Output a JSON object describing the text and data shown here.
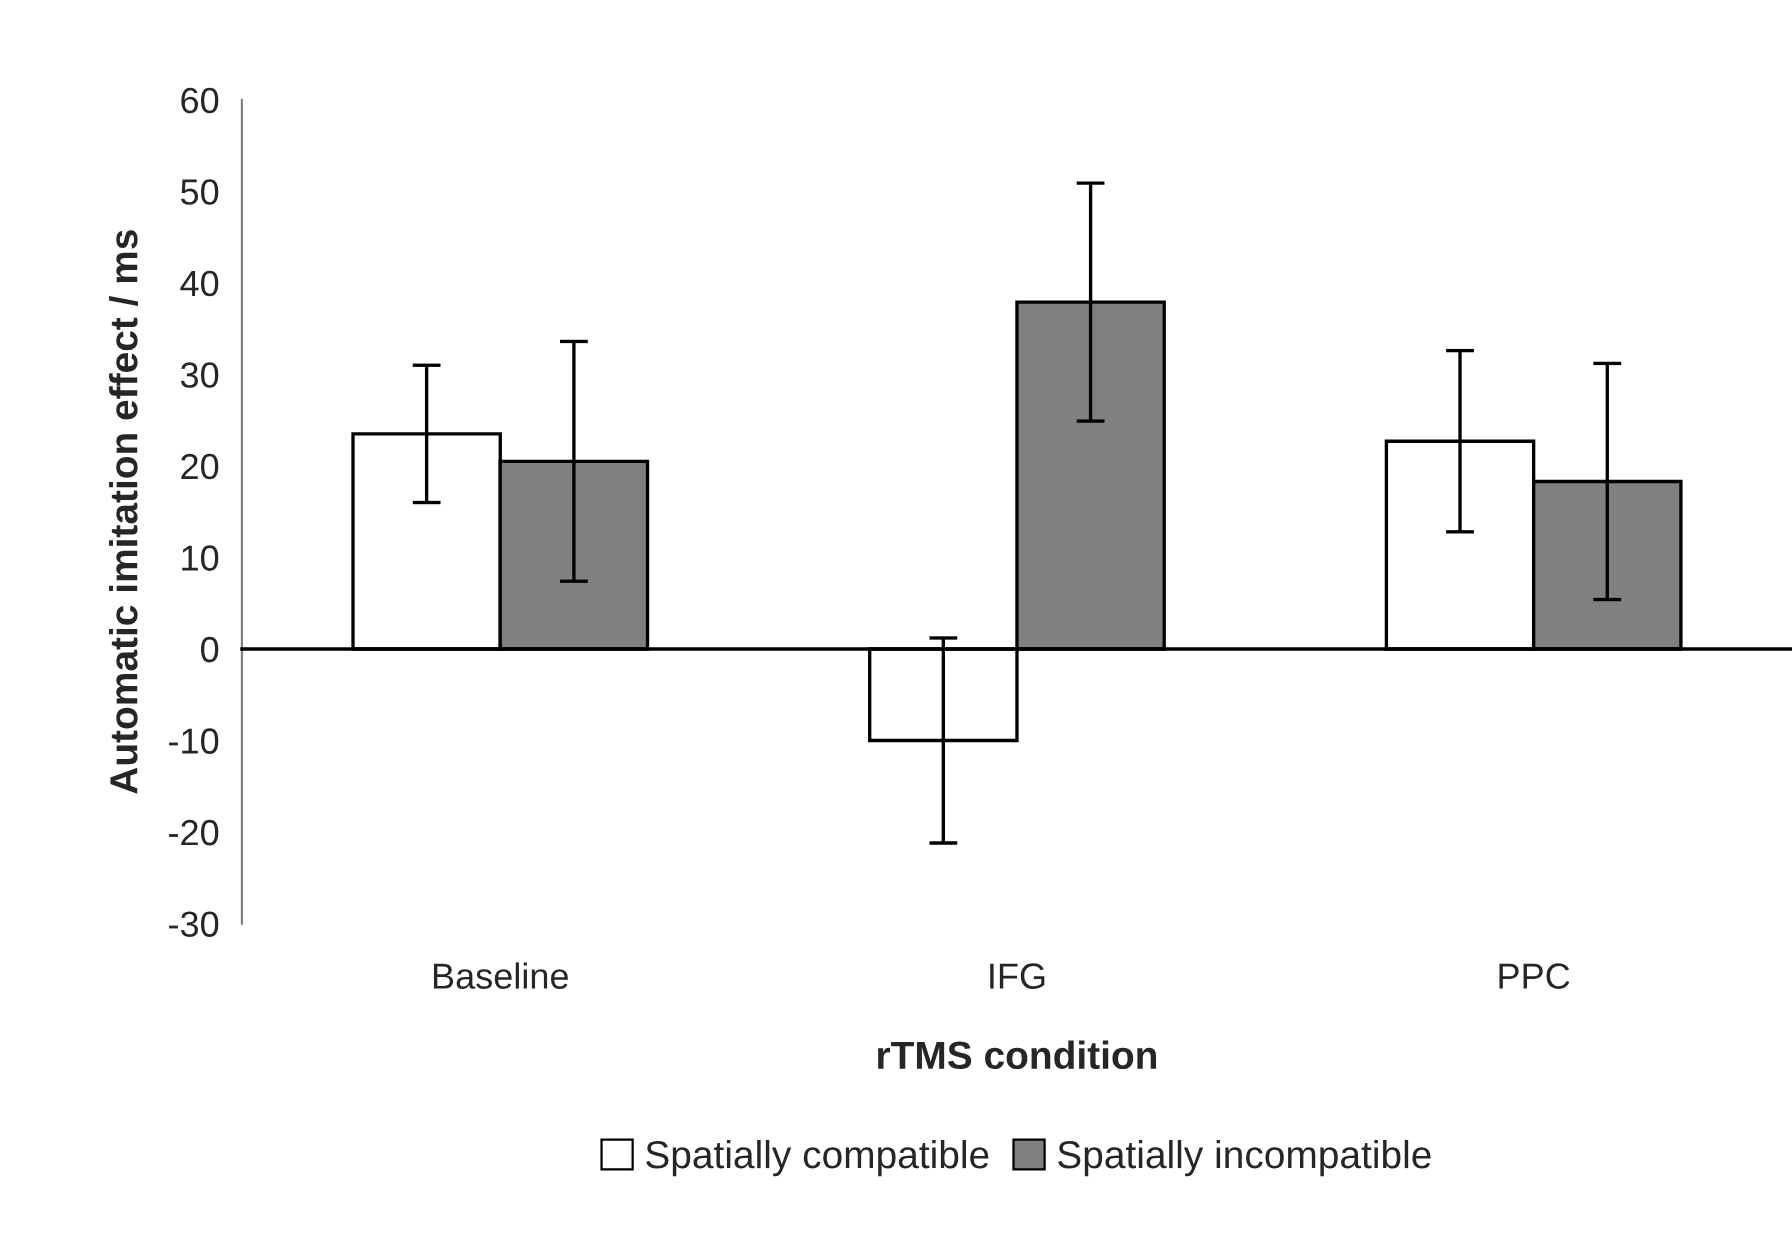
{
  "chart_data": {
    "type": "bar",
    "xlabel": "rTMS condition",
    "ylabel": "Automatic imitation effect / ms",
    "categories": [
      "Baseline",
      "IFG",
      "PPC"
    ],
    "series": [
      {
        "name": "Spatially compatible",
        "color": "#ffffff",
        "values": [
          23.5,
          -10,
          22.7
        ],
        "errors": [
          7.5,
          11.2,
          9.9
        ]
      },
      {
        "name": "Spatially incompatible",
        "color": "#808080",
        "values": [
          20.5,
          37.9,
          18.3
        ],
        "errors": [
          13.1,
          13,
          12.9
        ]
      }
    ],
    "ylim": [
      -30,
      60
    ],
    "yticks": [
      -30,
      -20,
      -10,
      0,
      10,
      20,
      30,
      40,
      50,
      60
    ],
    "legend": "bottom"
  }
}
